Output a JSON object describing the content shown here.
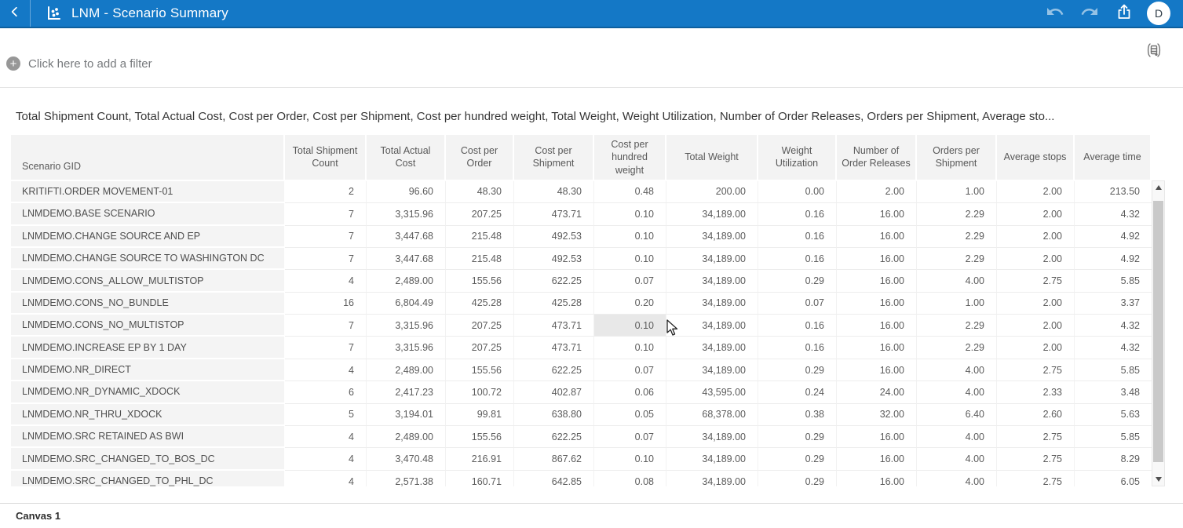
{
  "colors": {
    "header_blue": "#1478c6",
    "header_blue_dark": "#0d5f9e",
    "table_header_bg": "#f3f3f3",
    "row_header_bg": "#f4f4f4",
    "hover_cell_bg": "#e8e8e8",
    "text_grey": "#5c5c5c"
  },
  "header": {
    "title": "LNM - Scenario Summary",
    "avatar_initial": "D"
  },
  "filter_bar": {
    "add_filter_label": "Click here to add a filter"
  },
  "visualization": {
    "title": "Total Shipment Count, Total Actual Cost, Cost per Order, Cost per Shipment, Cost per hundred weight, Total Weight, Weight Utilization, Number of Order Releases, Orders per Shipment, Average sto..."
  },
  "table": {
    "columns": [
      "Scenario GID",
      "Total Shipment Count",
      "Total Actual Cost",
      "Cost per Order",
      "Cost per Shipment",
      "Cost per hundred weight",
      "Total Weight",
      "Weight Utilization",
      "Number of Order Releases",
      "Orders per Shipment",
      "Average stops",
      "Average time"
    ],
    "rows": [
      {
        "scenario": "KRITIFTI.ORDER MOVEMENT-01",
        "values": [
          "2",
          "96.60",
          "48.30",
          "48.30",
          "0.48",
          "200.00",
          "0.00",
          "2.00",
          "1.00",
          "2.00",
          "213.50"
        ]
      },
      {
        "scenario": "LNMDEMO.BASE SCENARIO",
        "values": [
          "7",
          "3,315.96",
          "207.25",
          "473.71",
          "0.10",
          "34,189.00",
          "0.16",
          "16.00",
          "2.29",
          "2.00",
          "4.32"
        ]
      },
      {
        "scenario": "LNMDEMO.CHANGE SOURCE AND EP",
        "values": [
          "7",
          "3,447.68",
          "215.48",
          "492.53",
          "0.10",
          "34,189.00",
          "0.16",
          "16.00",
          "2.29",
          "2.00",
          "4.92"
        ]
      },
      {
        "scenario": "LNMDEMO.CHANGE SOURCE TO WASHINGTON DC",
        "values": [
          "7",
          "3,447.68",
          "215.48",
          "492.53",
          "0.10",
          "34,189.00",
          "0.16",
          "16.00",
          "2.29",
          "2.00",
          "4.92"
        ]
      },
      {
        "scenario": "LNMDEMO.CONS_ALLOW_MULTISTOP",
        "values": [
          "4",
          "2,489.00",
          "155.56",
          "622.25",
          "0.07",
          "34,189.00",
          "0.29",
          "16.00",
          "4.00",
          "2.75",
          "5.85"
        ]
      },
      {
        "scenario": "LNMDEMO.CONS_NO_BUNDLE",
        "values": [
          "16",
          "6,804.49",
          "425.28",
          "425.28",
          "0.20",
          "34,189.00",
          "0.07",
          "16.00",
          "1.00",
          "2.00",
          "3.37"
        ]
      },
      {
        "scenario": "LNMDEMO.CONS_NO_MULTISTOP",
        "values": [
          "7",
          "3,315.96",
          "207.25",
          "473.71",
          "0.10",
          "34,189.00",
          "0.16",
          "16.00",
          "2.29",
          "2.00",
          "4.32"
        ]
      },
      {
        "scenario": "LNMDEMO.INCREASE EP BY 1 DAY",
        "values": [
          "7",
          "3,315.96",
          "207.25",
          "473.71",
          "0.10",
          "34,189.00",
          "0.16",
          "16.00",
          "2.29",
          "2.00",
          "4.32"
        ]
      },
      {
        "scenario": "LNMDEMO.NR_DIRECT",
        "values": [
          "4",
          "2,489.00",
          "155.56",
          "622.25",
          "0.07",
          "34,189.00",
          "0.29",
          "16.00",
          "4.00",
          "2.75",
          "5.85"
        ]
      },
      {
        "scenario": "LNMDEMO.NR_DYNAMIC_XDOCK",
        "values": [
          "6",
          "2,417.23",
          "100.72",
          "402.87",
          "0.06",
          "43,595.00",
          "0.24",
          "24.00",
          "4.00",
          "2.33",
          "3.48"
        ]
      },
      {
        "scenario": "LNMDEMO.NR_THRU_XDOCK",
        "values": [
          "5",
          "3,194.01",
          "99.81",
          "638.80",
          "0.05",
          "68,378.00",
          "0.38",
          "32.00",
          "6.40",
          "2.60",
          "5.63"
        ]
      },
      {
        "scenario": "LNMDEMO.SRC RETAINED AS BWI",
        "values": [
          "4",
          "2,489.00",
          "155.56",
          "622.25",
          "0.07",
          "34,189.00",
          "0.29",
          "16.00",
          "4.00",
          "2.75",
          "5.85"
        ]
      },
      {
        "scenario": "LNMDEMO.SRC_CHANGED_TO_BOS_DC",
        "values": [
          "4",
          "3,470.48",
          "216.91",
          "867.62",
          "0.10",
          "34,189.00",
          "0.29",
          "16.00",
          "4.00",
          "2.75",
          "8.29"
        ]
      },
      {
        "scenario": "LNMDEMO.SRC_CHANGED_TO_PHL_DC",
        "values": [
          "4",
          "2,571.38",
          "160.71",
          "642.85",
          "0.08",
          "34,189.00",
          "0.29",
          "16.00",
          "4.00",
          "2.75",
          "6.05"
        ]
      }
    ],
    "hovered_cell": {
      "row_index": 6,
      "value_index": 4
    }
  },
  "footer": {
    "canvas_label": "Canvas 1"
  }
}
